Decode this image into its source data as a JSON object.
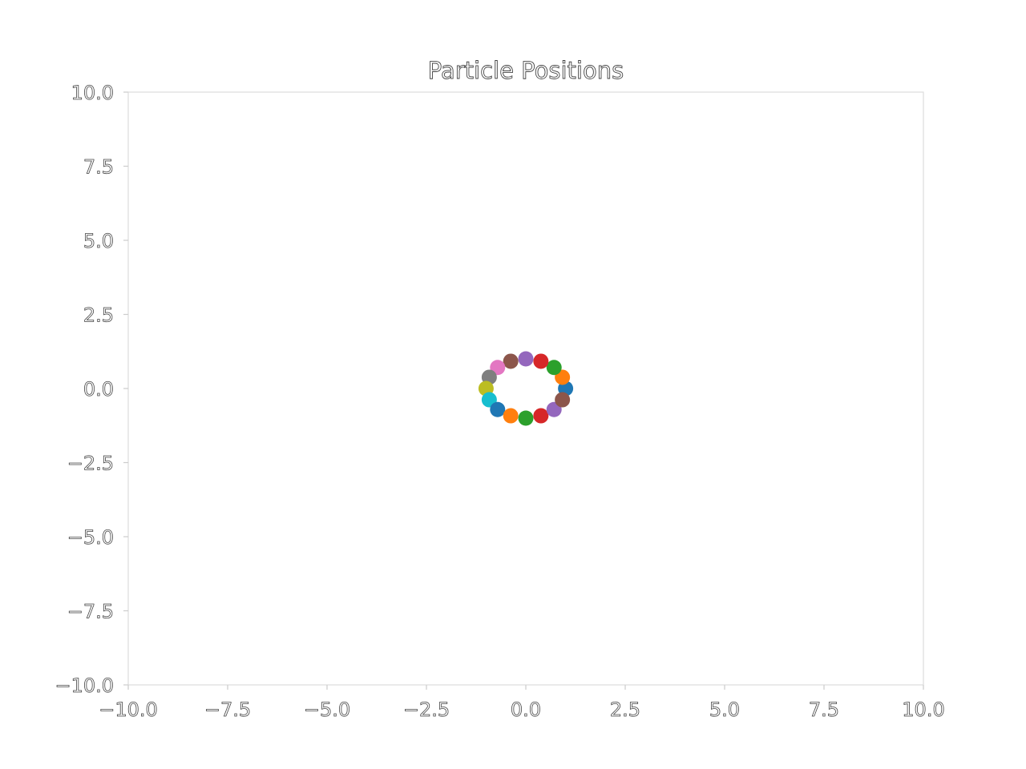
{
  "chart_data": {
    "type": "scatter",
    "title": "Particle Positions",
    "xlabel": "",
    "ylabel": "",
    "xlim": [
      -10,
      10
    ],
    "ylim": [
      -10,
      10
    ],
    "grid": false,
    "x_ticks": [
      "−10.0",
      "−7.5",
      "−5.0",
      "−2.5",
      "0.0",
      "2.5",
      "5.0",
      "7.5",
      "10.0"
    ],
    "y_ticks": [
      "10.0",
      "7.5",
      "5.0",
      "2.5",
      "0.0",
      "−2.5",
      "−5.0",
      "−7.5",
      "−10.0"
    ],
    "x_tick_values": [
      -10,
      -7.5,
      -5,
      -2.5,
      0,
      2.5,
      5,
      7.5,
      10
    ],
    "y_tick_values": [
      10,
      7.5,
      5,
      2.5,
      0,
      -2.5,
      -5,
      -7.5,
      -10
    ],
    "points": [
      {
        "x": 1.0,
        "y": 0.0,
        "color": "#1f77b4"
      },
      {
        "x": 0.92,
        "y": 0.38,
        "color": "#ff7f0e"
      },
      {
        "x": 0.71,
        "y": 0.71,
        "color": "#2ca02c"
      },
      {
        "x": 0.38,
        "y": 0.92,
        "color": "#d62728"
      },
      {
        "x": 0.0,
        "y": 1.0,
        "color": "#9467bd"
      },
      {
        "x": -0.38,
        "y": 0.92,
        "color": "#8c564b"
      },
      {
        "x": -0.71,
        "y": 0.71,
        "color": "#e377c2"
      },
      {
        "x": -0.92,
        "y": 0.38,
        "color": "#7f7f7f"
      },
      {
        "x": -1.0,
        "y": 0.0,
        "color": "#bcbd22"
      },
      {
        "x": -0.92,
        "y": -0.38,
        "color": "#17becf"
      },
      {
        "x": -0.71,
        "y": -0.71,
        "color": "#1f77b4"
      },
      {
        "x": -0.38,
        "y": -0.92,
        "color": "#ff7f0e"
      },
      {
        "x": 0.0,
        "y": -1.0,
        "color": "#2ca02c"
      },
      {
        "x": 0.38,
        "y": -0.92,
        "color": "#d62728"
      },
      {
        "x": 0.71,
        "y": -0.71,
        "color": "#9467bd"
      },
      {
        "x": 0.92,
        "y": -0.38,
        "color": "#8c564b"
      }
    ]
  }
}
